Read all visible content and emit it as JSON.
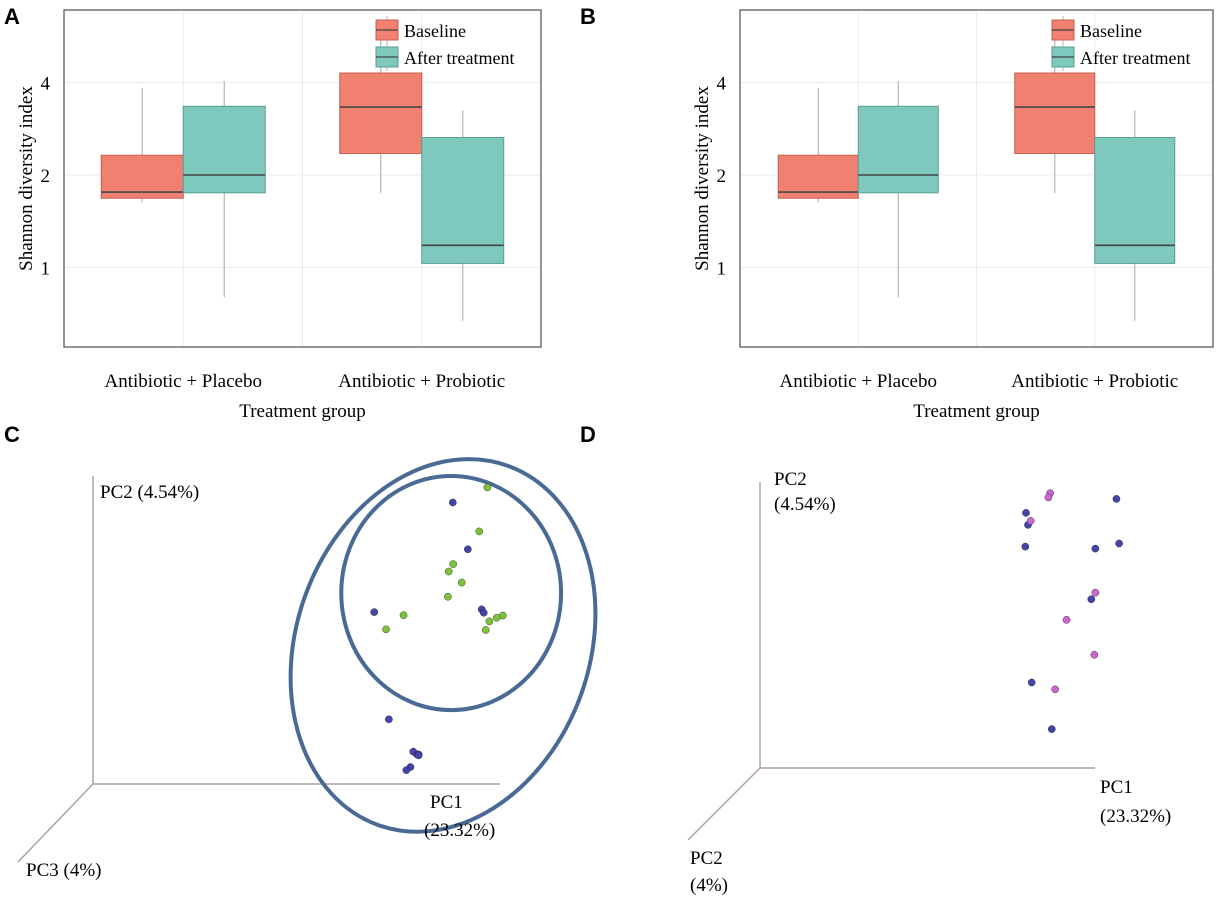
{
  "colors": {
    "baseline_fill": "#F08070",
    "baseline_stroke": "#C8604F",
    "after_fill": "#7EC8BE",
    "after_stroke": "#5A9E95",
    "median": "#444444",
    "whisker": "#B5B5B5",
    "frame": "#4D4D4D",
    "grid": "#EBEBEB",
    "ellipse": "#4A6A96",
    "dot_blue": "#4444AA",
    "dot_green": "#7CC33A",
    "dot_pink": "#CC66CC",
    "axis3d": "#B0A0A0"
  },
  "chart_data": [
    {
      "panel": "A",
      "type": "box",
      "title": "",
      "xlabel": "Treatment group",
      "ylabel": "Shannon diversity index",
      "categories": [
        "Antibiotic + Placebo",
        "Antibiotic + Probiotic"
      ],
      "yticks": [
        {
          "value": 1,
          "label": "1"
        },
        {
          "value": 2,
          "label": "2"
        },
        {
          "value": 4,
          "label": "4"
        }
      ],
      "scale": "log",
      "ylim": [
        0.55,
        6.9
      ],
      "legend": {
        "position": "top-right",
        "entries": [
          "Baseline",
          "After treatment"
        ]
      },
      "series": [
        {
          "name": "Baseline",
          "boxes": [
            {
              "whisker_low": 1.63,
              "q1": 1.68,
              "median": 1.76,
              "q3": 2.32,
              "whisker_high": 3.85
            },
            {
              "whisker_low": 1.75,
              "q1": 2.35,
              "median": 3.33,
              "q3": 4.3,
              "whisker_high": 6.2
            }
          ]
        },
        {
          "name": "After treatment",
          "boxes": [
            {
              "whisker_low": 0.8,
              "q1": 1.75,
              "median": 2.0,
              "q3": 3.35,
              "whisker_high": 4.05
            },
            {
              "whisker_low": 0.67,
              "q1": 1.03,
              "median": 1.18,
              "q3": 2.65,
              "whisker_high": 3.25
            }
          ]
        }
      ]
    },
    {
      "panel": "B",
      "type": "box",
      "title": "",
      "xlabel": "Treatment group",
      "ylabel": "Shannon diversity index",
      "categories": [
        "Antibiotic + Placebo",
        "Antibiotic + Probiotic"
      ],
      "yticks": [
        {
          "value": 1,
          "label": "1"
        },
        {
          "value": 2,
          "label": "2"
        },
        {
          "value": 4,
          "label": "4"
        }
      ],
      "scale": "log",
      "ylim": [
        0.55,
        6.9
      ],
      "legend": {
        "position": "top-right",
        "entries": [
          "Baseline",
          "After treatment"
        ]
      },
      "series": [
        {
          "name": "Baseline",
          "boxes": [
            {
              "whisker_low": 1.63,
              "q1": 1.68,
              "median": 1.76,
              "q3": 2.32,
              "whisker_high": 3.85
            },
            {
              "whisker_low": 1.75,
              "q1": 2.35,
              "median": 3.33,
              "q3": 4.3,
              "whisker_high": 6.2
            }
          ]
        },
        {
          "name": "After treatment",
          "boxes": [
            {
              "whisker_low": 0.8,
              "q1": 1.75,
              "median": 2.0,
              "q3": 3.35,
              "whisker_high": 4.05
            },
            {
              "whisker_low": 0.67,
              "q1": 1.03,
              "median": 1.18,
              "q3": 2.65,
              "whisker_high": 3.25
            }
          ]
        }
      ]
    },
    {
      "panel": "C",
      "type": "scatter",
      "title": "",
      "axes": {
        "pc1": "PC1",
        "pc1_pct": "(23.32%)",
        "pc2": "PC2 (4.54%)",
        "pc3": "PC3 (4%)"
      },
      "note": "3D PCoA; values are relative positions along PC1 / PC2 axis extents (0-1)",
      "ellipses": [
        {
          "cx": 0.88,
          "cy": 0.62,
          "rx": 0.27,
          "ry": 0.38,
          "angle": 0
        },
        {
          "cx": 0.86,
          "cy": 0.45,
          "rx": 0.36,
          "ry": 0.62,
          "angle": 20
        }
      ],
      "series": [
        {
          "name": "blue",
          "color": "#4444AA",
          "points": [
            [
              0.884,
              0.914
            ],
            [
              0.921,
              0.762
            ],
            [
              0.691,
              0.558
            ],
            [
              0.727,
              0.21
            ],
            [
              0.787,
              0.105
            ],
            [
              0.796,
              0.096
            ],
            [
              0.8,
              0.096
            ],
            [
              0.8,
              0.093
            ],
            [
              0.78,
              0.055
            ],
            [
              0.77,
              0.045
            ],
            [
              0.955,
              0.567
            ],
            [
              0.96,
              0.556
            ]
          ]
        },
        {
          "name": "green",
          "color": "#7CC33A",
          "points": [
            [
              0.969,
              0.963
            ],
            [
              0.949,
              0.82
            ],
            [
              0.885,
              0.714
            ],
            [
              0.874,
              0.69
            ],
            [
              0.906,
              0.654
            ],
            [
              0.872,
              0.608
            ],
            [
              0.974,
              0.528
            ],
            [
              1.007,
              0.547
            ],
            [
              0.992,
              0.54
            ],
            [
              0.965,
              0.5
            ],
            [
              0.763,
              0.548
            ],
            [
              0.72,
              0.502
            ]
          ]
        }
      ]
    },
    {
      "panel": "D",
      "type": "scatter",
      "title": "",
      "axes": {
        "pc1": "PC1",
        "pc1_pct": "(23.32%)",
        "pc2_top": "PC2",
        "pc2_top_pct": "(4.54%)",
        "pc2_bottom": "PC2",
        "pc2_bottom_pct": "(4%)"
      },
      "note": "3D PCoA; values are relative positions along PC1 / PC2 axis extents (0-1)",
      "series": [
        {
          "name": "blue",
          "color": "#4444AA",
          "points": [
            [
              0.794,
              0.892
            ],
            [
              0.8,
              0.85
            ],
            [
              0.792,
              0.774
            ],
            [
              1.064,
              0.941
            ],
            [
              1.072,
              0.785
            ],
            [
              1.001,
              0.767
            ],
            [
              0.989,
              0.59
            ],
            [
              0.811,
              0.299
            ],
            [
              0.871,
              0.136
            ]
          ]
        },
        {
          "name": "pink",
          "color": "#CC66CC",
          "points": [
            [
              0.866,
              0.961
            ],
            [
              0.861,
              0.946
            ],
            [
              0.808,
              0.864
            ],
            [
              0.915,
              0.518
            ],
            [
              0.998,
              0.396
            ],
            [
              0.881,
              0.275
            ],
            [
              1.001,
              0.613
            ]
          ]
        }
      ]
    }
  ]
}
